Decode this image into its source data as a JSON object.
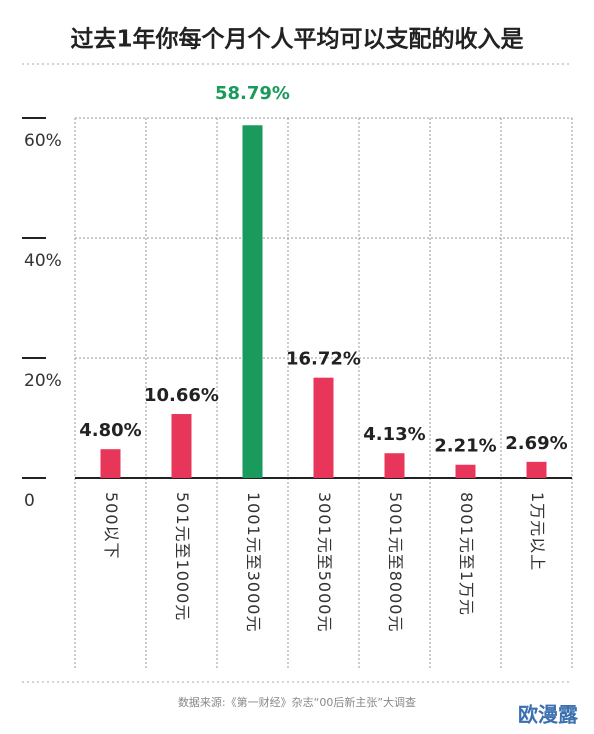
{
  "chart_data": {
    "type": "bar",
    "title": "过去1年你每个月个人平均可以支配的收入是",
    "categories": [
      "500以下",
      "501元至1000元",
      "1001元至3000元",
      "3001元至5000元",
      "5001元至8000元",
      "8001元至1万元",
      "1万元以上"
    ],
    "values": [
      4.8,
      10.66,
      58.79,
      16.72,
      4.13,
      2.21,
      2.69
    ],
    "value_labels": [
      "4.80%",
      "10.66%",
      "58.79%",
      "16.72%",
      "4.13%",
      "2.21%",
      "2.69%"
    ],
    "colors": [
      "#e8365a",
      "#e8365a",
      "#1a9a5c",
      "#e8365a",
      "#e8365a",
      "#e8365a",
      "#e8365a"
    ],
    "ylim": [
      0,
      60
    ],
    "yticks": [
      {
        "value": 0,
        "label": "0"
      },
      {
        "value": 20,
        "label": "20%"
      },
      {
        "value": 40,
        "label": "40%"
      },
      {
        "value": 60,
        "label": "60%"
      }
    ],
    "grid": true,
    "source": "数据来源:《第一财经》杂志“00后新主张”大调查",
    "watermark": "欧漫露"
  }
}
